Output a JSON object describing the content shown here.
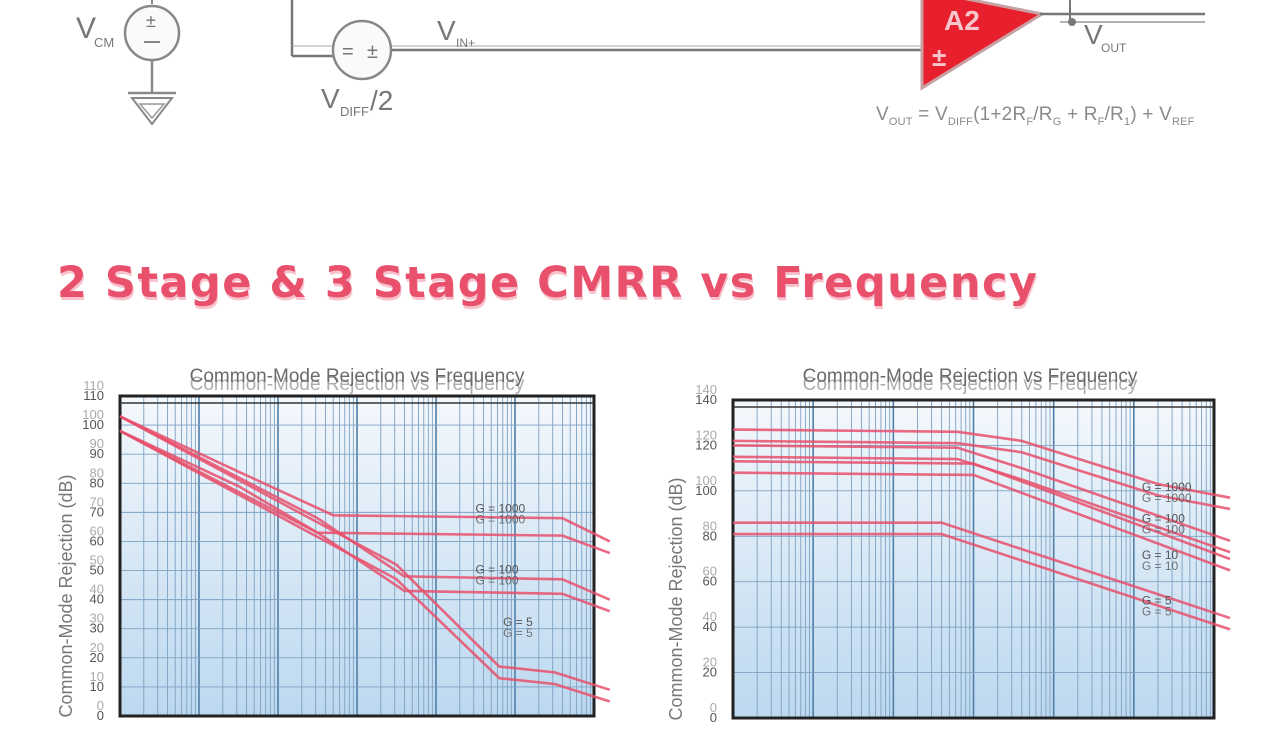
{
  "slide": {
    "title": "2 Stage & 3 Stage CMRR vs Frequency"
  },
  "circuit": {
    "vcm_label": "V",
    "vcm_sub": "CM",
    "vdiff_label": "V",
    "vdiff_sub": "DIFF",
    "vdiff_suffix": "/2",
    "vin_label": "V",
    "vin_sub": "IN+",
    "vout_label": "V",
    "vout_sub": "OUT",
    "amp_label": "A2",
    "amp_input_sign": "±",
    "src_sign_left": "=",
    "src_sign_right": "±",
    "src_cm_sign": "±"
  },
  "formula": {
    "v1": "V",
    "s1": "OUT",
    "eq": " = ",
    "v2": "V",
    "s2": "DIFF",
    "t1": "(1+2R",
    "s3": "F",
    "t2": "/R",
    "s4": "G",
    "t3": " + R",
    "s5": "F",
    "t4": "/R",
    "s6": "1",
    "t5": ") + V",
    "s7": "REF"
  },
  "colors": {
    "title": "#e8506c",
    "curve": "#e8506c",
    "amp": "#e8202e",
    "plot_top": "#f4f8fc",
    "plot_bottom": "#bcd8ef",
    "grid_major": "#4f7fa8",
    "grid_minor": "#7ea2c2"
  },
  "chart_data": [
    {
      "type": "line",
      "title": "Common-Mode Rejection vs Frequency",
      "ylabel": "Common-Mode Rejection (dB)",
      "x_scale": "log",
      "x_decades": 6,
      "ylim": [
        0,
        110
      ],
      "yticks": [
        0,
        10,
        20,
        30,
        40,
        50,
        60,
        70,
        80,
        90,
        100,
        110
      ],
      "series": [
        {
          "name": "G = 1000",
          "x": [
            0,
            1.5,
            2.7,
            5.6,
            6.2
          ],
          "y": [
            103,
            84,
            69,
            68,
            60
          ]
        },
        {
          "name": "",
          "x": [
            0,
            1.5,
            2.5,
            5.6,
            6.2
          ],
          "y": [
            98,
            79,
            63,
            62,
            56
          ]
        },
        {
          "name": "G = 100",
          "x": [
            0,
            2.5,
            3.6,
            5.6,
            6.2
          ],
          "y": [
            103,
            68,
            48,
            47,
            40
          ]
        },
        {
          "name": "",
          "x": [
            0,
            2.5,
            3.6,
            5.6,
            6.2
          ],
          "y": [
            98,
            63,
            43,
            42,
            36
          ]
        },
        {
          "name": "G = 5",
          "x": [
            0,
            3.5,
            4.8,
            5.5,
            6.2
          ],
          "y": [
            103,
            52,
            17,
            15,
            9
          ]
        },
        {
          "name": "",
          "x": [
            0,
            3.5,
            4.8,
            5.5,
            6.2
          ],
          "y": [
            98,
            47,
            13,
            11,
            5
          ]
        }
      ],
      "labels": [
        {
          "text": "G = 1000",
          "x": 4.5,
          "y": 70
        },
        {
          "text": "G = 100",
          "x": 4.5,
          "y": 49
        },
        {
          "text": "G = 5",
          "x": 4.85,
          "y": 31
        }
      ]
    },
    {
      "type": "line",
      "title": "Common-Mode Rejection vs Frequency",
      "ylabel": "Common-Mode Rejection (dB)",
      "x_scale": "log",
      "x_decades": 6,
      "ylim": [
        0,
        140
      ],
      "yticks": [
        0,
        20,
        40,
        60,
        80,
        100,
        120,
        140
      ],
      "series": [
        {
          "name": "G = 1000",
          "x": [
            0,
            2.8,
            3.6,
            5.3,
            6.2
          ],
          "y": [
            127,
            126,
            122,
            103,
            97
          ]
        },
        {
          "name": "",
          "x": [
            0,
            2.8,
            3.6,
            5.3,
            6.2
          ],
          "y": [
            122,
            121,
            117,
            98,
            92
          ]
        },
        {
          "name": "G = 100",
          "x": [
            0,
            2.8,
            3.6,
            6.2
          ],
          "y": [
            120,
            119,
            110,
            78
          ]
        },
        {
          "name": "",
          "x": [
            0,
            2.8,
            3.6,
            6.2
          ],
          "y": [
            115,
            114,
            105,
            73
          ]
        },
        {
          "name": "G = 10",
          "x": [
            0,
            3.0,
            6.2
          ],
          "y": [
            113,
            112,
            70
          ]
        },
        {
          "name": "",
          "x": [
            0,
            3.0,
            6.2
          ],
          "y": [
            108,
            107,
            65
          ]
        },
        {
          "name": "G = 5",
          "x": [
            0,
            2.6,
            6.2
          ],
          "y": [
            86,
            86,
            44
          ]
        },
        {
          "name": "",
          "x": [
            0,
            2.6,
            6.2
          ],
          "y": [
            81,
            81,
            39
          ]
        }
      ],
      "labels": [
        {
          "text": "G = 1000",
          "x": 5.1,
          "y": 100
        },
        {
          "text": "G = 100",
          "x": 5.1,
          "y": 86
        },
        {
          "text": "G = 10",
          "x": 5.1,
          "y": 70
        },
        {
          "text": "G = 5",
          "x": 5.1,
          "y": 50
        }
      ]
    }
  ]
}
